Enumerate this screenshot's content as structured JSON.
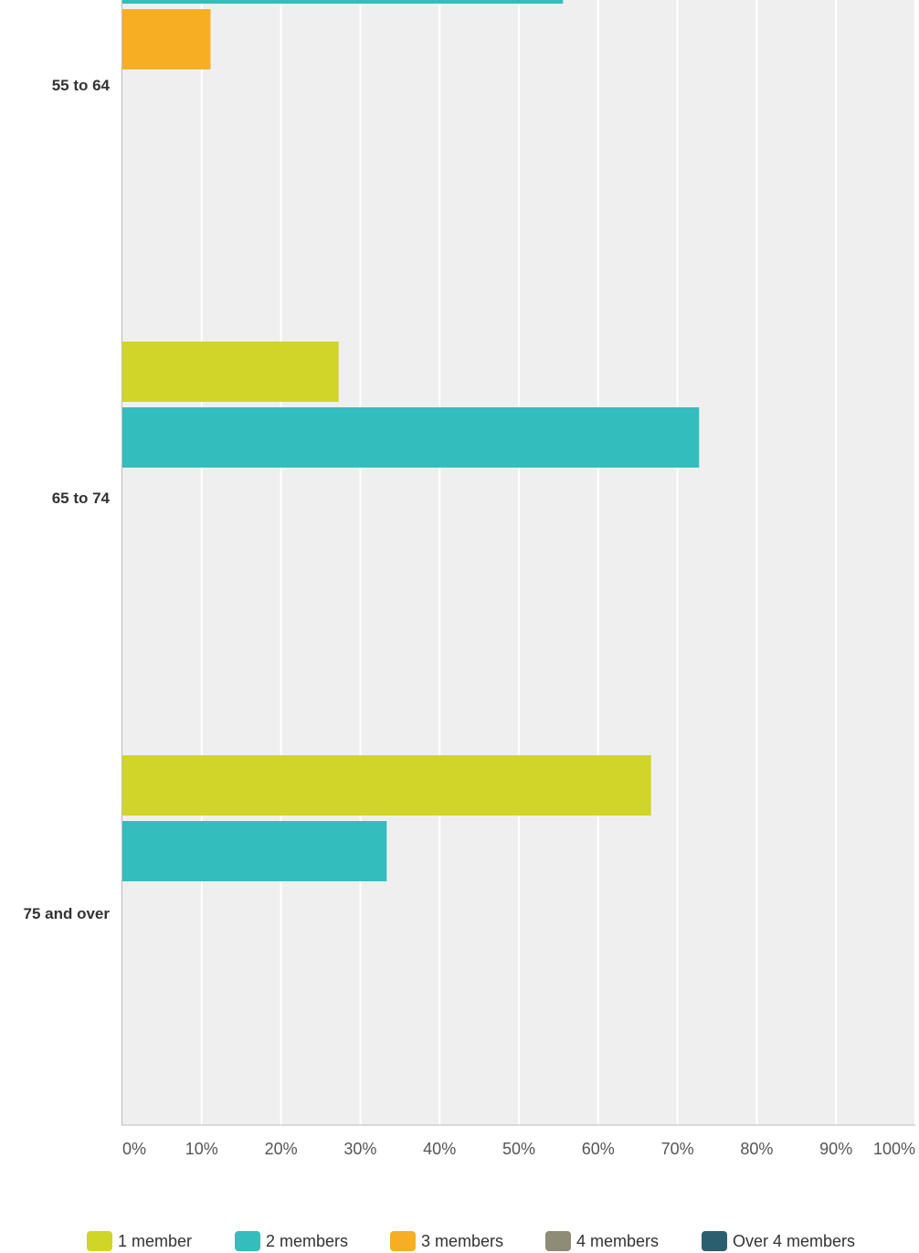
{
  "chart_data": {
    "type": "bar",
    "orientation": "horizontal",
    "categories": [
      "55 to 64",
      "65 to 74",
      "75 and over"
    ],
    "series": [
      {
        "name": "1 member",
        "color": "#d0d527",
        "values": [
          null,
          27.27,
          66.67
        ]
      },
      {
        "name": "2 members",
        "color": "#34bdbd",
        "values": [
          55.56,
          72.73,
          33.33
        ]
      },
      {
        "name": "3 members",
        "color": "#f7ae23",
        "values": [
          11.11,
          0,
          0
        ]
      },
      {
        "name": "4 members",
        "color": "#8e8b76",
        "values": [
          null,
          0,
          0
        ]
      },
      {
        "name": "Over 4 members",
        "color": "#2b5f6f",
        "values": [
          null,
          0,
          0
        ]
      }
    ],
    "xlim": [
      0,
      100
    ],
    "x_ticks": [
      "0%",
      "10%",
      "20%",
      "30%",
      "40%",
      "50%",
      "60%",
      "70%",
      "80%",
      "90%",
      "100%"
    ],
    "grid": true,
    "legend_position": "bottom"
  }
}
